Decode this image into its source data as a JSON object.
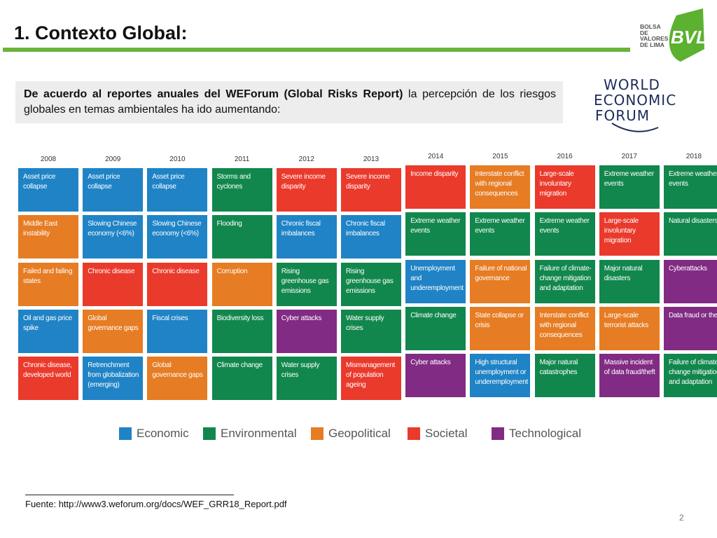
{
  "slide": {
    "title": "1.  Contexto Global:",
    "intro_bold": "De acuerdo al reportes anuales del WEForum (Global Risks Report)",
    "intro_rest": " la percepción de los riesgos globales en temas ambientales ha ido aumentando:",
    "source": "Fuente: http://www3.weforum.org/docs/WEF_GRR18_Report.pdf",
    "page_number": "2"
  },
  "bvl_logo": {
    "text_lines": [
      "BOLSA DE",
      "VALORES",
      "DE LIMA"
    ],
    "mark": "BVL",
    "color": "#5cb130"
  },
  "wef_logo": {
    "lines": [
      "WORLD",
      "ECONOMIC",
      "FORUM"
    ],
    "color": "#1c2b5a"
  },
  "colors": {
    "Economic": "#1f83c6",
    "Environmental": "#12874d",
    "Geopolitical": "#e67c23",
    "Societal": "#ea3a2c",
    "Technological": "#812b84"
  },
  "legend": [
    "Economic",
    "Environmental",
    "Geopolitical",
    "Societal",
    "Technological"
  ],
  "years": [
    "2008",
    "2009",
    "2010",
    "2011",
    "2012",
    "2013",
    "2014",
    "2015",
    "2016",
    "2017",
    "2018"
  ],
  "risks": [
    [
      {
        "text": "Asset price collapse",
        "category": "Economic"
      },
      {
        "text": "Middle East instability",
        "category": "Geopolitical"
      },
      {
        "text": "Failed and failing states",
        "category": "Geopolitical"
      },
      {
        "text": "Oil and gas price spike",
        "category": "Economic"
      },
      {
        "text": "Chronic disease, developed world",
        "category": "Societal"
      }
    ],
    [
      {
        "text": "Asset price collapse",
        "category": "Economic"
      },
      {
        "text": "Slowing Chinese economy (<6%)",
        "category": "Economic"
      },
      {
        "text": "Chronic disease",
        "category": "Societal"
      },
      {
        "text": "Global governance gaps",
        "category": "Geopolitical"
      },
      {
        "text": "Retrenchment from globalization (emerging)",
        "category": "Economic"
      }
    ],
    [
      {
        "text": "Asset price collapse",
        "category": "Economic"
      },
      {
        "text": "Slowing Chinese economy (<6%)",
        "category": "Economic"
      },
      {
        "text": "Chronic disease",
        "category": "Societal"
      },
      {
        "text": "Fiscal crises",
        "category": "Economic"
      },
      {
        "text": "Global governance gaps",
        "category": "Geopolitical"
      }
    ],
    [
      {
        "text": "Storms and cyclones",
        "category": "Environmental"
      },
      {
        "text": "Flooding",
        "category": "Environmental"
      },
      {
        "text": "Corruption",
        "category": "Geopolitical"
      },
      {
        "text": "Biodiversity loss",
        "category": "Environmental"
      },
      {
        "text": "Climate change",
        "category": "Environmental"
      }
    ],
    [
      {
        "text": "Severe income disparity",
        "category": "Societal"
      },
      {
        "text": "Chronic fiscal imbalances",
        "category": "Economic"
      },
      {
        "text": "Rising greenhouse gas emissions",
        "category": "Environmental"
      },
      {
        "text": "Cyber attacks",
        "category": "Technological"
      },
      {
        "text": "Water supply crises",
        "category": "Environmental"
      }
    ],
    [
      {
        "text": "Severe income disparity",
        "category": "Societal"
      },
      {
        "text": "Chronic fiscal imbalances",
        "category": "Economic"
      },
      {
        "text": "Rising greenhouse gas emissions",
        "category": "Environmental"
      },
      {
        "text": "Water supply crises",
        "category": "Environmental"
      },
      {
        "text": "Mismanagement of population ageing",
        "category": "Societal"
      }
    ],
    [
      {
        "text": "Income disparity",
        "category": "Societal"
      },
      {
        "text": "Extreme weather events",
        "category": "Environmental"
      },
      {
        "text": "Unemployment and underemployment",
        "category": "Economic"
      },
      {
        "text": "Climate change",
        "category": "Environmental"
      },
      {
        "text": "Cyber attacks",
        "category": "Technological"
      }
    ],
    [
      {
        "text": "Interstate conflict with regional consequences",
        "category": "Geopolitical"
      },
      {
        "text": "Extreme weather events",
        "category": "Environmental"
      },
      {
        "text": "Failure of national governance",
        "category": "Geopolitical"
      },
      {
        "text": "State collapse or crisis",
        "category": "Geopolitical"
      },
      {
        "text": "High structural unemployment or underemployment",
        "category": "Economic"
      }
    ],
    [
      {
        "text": "Large-scale involuntary migration",
        "category": "Societal"
      },
      {
        "text": "Extreme weather events",
        "category": "Environmental"
      },
      {
        "text": "Failure of climate-change mitigation and adaptation",
        "category": "Environmental"
      },
      {
        "text": "Interstate conflict with regional consequences",
        "category": "Geopolitical"
      },
      {
        "text": "Major natural catastrophes",
        "category": "Environmental"
      }
    ],
    [
      {
        "text": "Extreme weather events",
        "category": "Environmental"
      },
      {
        "text": "Large-scale involuntary migration",
        "category": "Societal"
      },
      {
        "text": "Major natural disasters",
        "category": "Environmental"
      },
      {
        "text": "Large-scale terrorist attacks",
        "category": "Geopolitical"
      },
      {
        "text": "Massive incident of data fraud/theft",
        "category": "Technological"
      }
    ],
    [
      {
        "text": "Extreme weather events",
        "category": "Environmental"
      },
      {
        "text": "Natural disasters",
        "category": "Environmental"
      },
      {
        "text": "Cyberattacks",
        "category": "Technological"
      },
      {
        "text": "Data fraud or theft",
        "category": "Technological"
      },
      {
        "text": "Failure of climate-change mitigation and adaptation",
        "category": "Environmental"
      }
    ]
  ]
}
